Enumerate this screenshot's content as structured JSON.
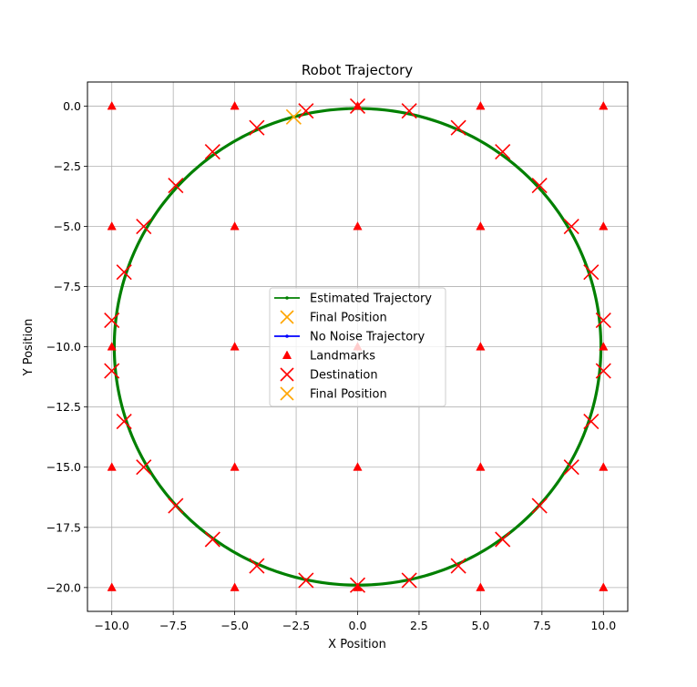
{
  "chart_data": {
    "type": "scatter",
    "title": "Robot Trajectory",
    "xlabel": "X Position",
    "ylabel": "Y Position",
    "xlim": [
      -10.99,
      10.99
    ],
    "ylim": [
      -20.99,
      1.0
    ],
    "xticks": [
      -10.0,
      -7.5,
      -5.0,
      -2.5,
      0.0,
      2.5,
      5.0,
      7.5,
      10.0
    ],
    "xtick_labels": [
      "−10.0",
      "−7.5",
      "−5.0",
      "−2.5",
      "0.0",
      "2.5",
      "5.0",
      "7.5",
      "10.0"
    ],
    "yticks": [
      0.0,
      -2.5,
      -5.0,
      -7.5,
      -10.0,
      -12.5,
      -15.0,
      -17.5,
      -20.0
    ],
    "ytick_labels": [
      "0.0",
      "−2.5",
      "−5.0",
      "−7.5",
      "−10.0",
      "−12.5",
      "−15.0",
      "−17.5",
      "−20.0"
    ],
    "grid": true,
    "legend_placement": "center",
    "trajectory": {
      "center": [
        0.0,
        -10.0
      ],
      "radius_x": 9.9,
      "radius_y": 9.9,
      "start_angle_deg": 90,
      "end_angle_deg": 454.5,
      "clockwise": true
    },
    "landmarks": [
      [
        -10,
        0
      ],
      [
        -5,
        0
      ],
      [
        0,
        0
      ],
      [
        5,
        0
      ],
      [
        10,
        0
      ],
      [
        -10,
        -5
      ],
      [
        -5,
        -5
      ],
      [
        0,
        -5
      ],
      [
        5,
        -5
      ],
      [
        10,
        -5
      ],
      [
        -10,
        -10
      ],
      [
        -5,
        -10
      ],
      [
        0,
        -10
      ],
      [
        5,
        -10
      ],
      [
        10,
        -10
      ],
      [
        -10,
        -15
      ],
      [
        -5,
        -15
      ],
      [
        0,
        -15
      ],
      [
        5,
        -15
      ],
      [
        10,
        -15
      ],
      [
        -10,
        -20
      ],
      [
        -5,
        -20
      ],
      [
        0,
        -20
      ],
      [
        5,
        -20
      ],
      [
        10,
        -20
      ]
    ],
    "destinations": [
      [
        0.0,
        0.0
      ],
      [
        2.1,
        -0.2
      ],
      [
        4.1,
        -0.9
      ],
      [
        5.9,
        -1.9
      ],
      [
        7.4,
        -3.3
      ],
      [
        8.7,
        -5.0
      ],
      [
        9.5,
        -6.9
      ],
      [
        10.0,
        -8.9
      ],
      [
        10.0,
        -11.0
      ],
      [
        9.5,
        -13.1
      ],
      [
        8.7,
        -15.0
      ],
      [
        7.4,
        -16.6
      ],
      [
        5.9,
        -18.0
      ],
      [
        4.1,
        -19.1
      ],
      [
        2.1,
        -19.7
      ],
      [
        0.0,
        -19.9
      ],
      [
        -2.1,
        -19.7
      ],
      [
        -4.1,
        -19.1
      ],
      [
        -5.9,
        -18.0
      ],
      [
        -7.4,
        -16.6
      ],
      [
        -8.7,
        -15.0
      ],
      [
        -9.5,
        -13.1
      ],
      [
        -10.0,
        -11.0
      ],
      [
        -10.0,
        -8.9
      ],
      [
        -9.5,
        -6.9
      ],
      [
        -8.7,
        -5.0
      ],
      [
        -7.4,
        -3.3
      ],
      [
        -5.9,
        -1.9
      ],
      [
        -4.1,
        -0.9
      ],
      [
        -2.1,
        -0.2
      ]
    ],
    "final_position": [
      -2.6,
      -0.45
    ],
    "series": [
      {
        "name": "Estimated Trajectory",
        "kind": "line-marker",
        "color": "#008000"
      },
      {
        "name": "Final Position",
        "kind": "x",
        "color": "#FFA500"
      },
      {
        "name": "No Noise Trajectory",
        "kind": "line-marker",
        "color": "#0000FF"
      },
      {
        "name": "Landmarks",
        "kind": "triangle",
        "color": "#FF0000"
      },
      {
        "name": "Destination",
        "kind": "x",
        "color": "#FF0000"
      },
      {
        "name": "Final Position",
        "kind": "x",
        "color": "#FFA500"
      }
    ]
  }
}
